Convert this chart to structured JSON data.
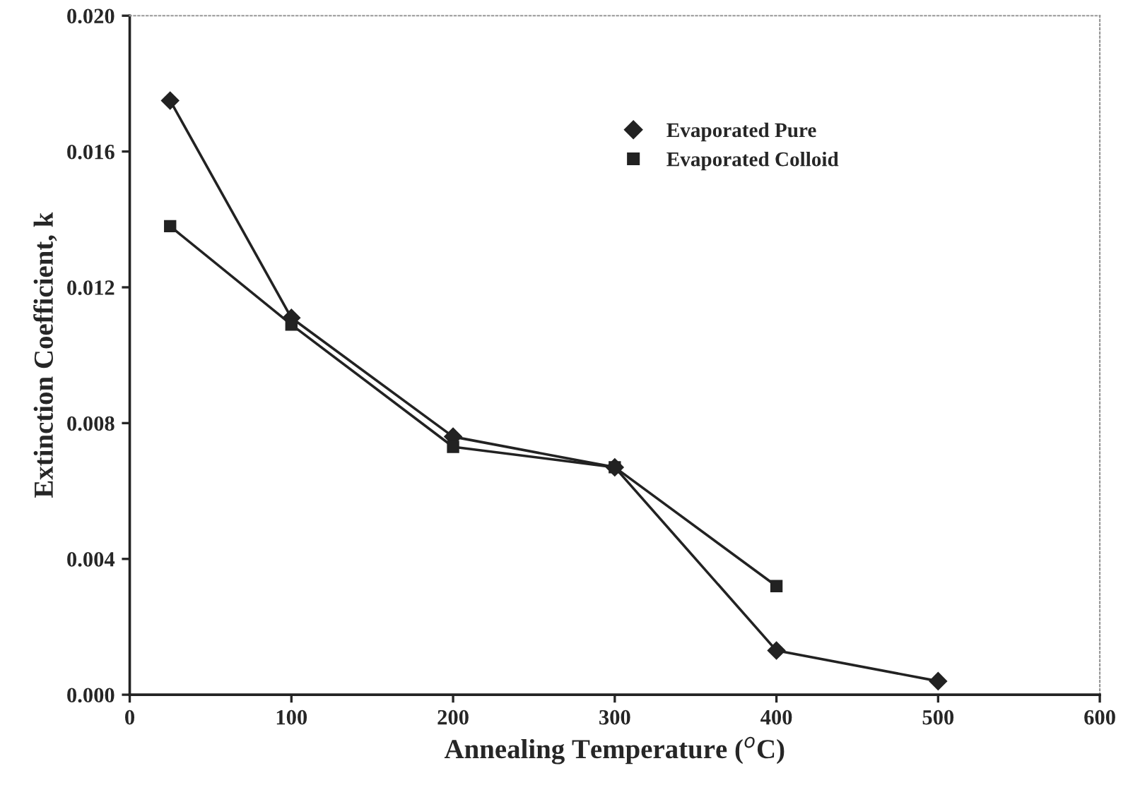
{
  "chart_data": {
    "type": "line",
    "xlabel": "Annealing Temperature ($^{o}$C)",
    "ylabel": "Extinction Coefficient, k",
    "xlim": [
      0,
      600
    ],
    "xticks": [
      0,
      100,
      200,
      300,
      400,
      500,
      600
    ],
    "ylim": [
      0,
      0.02
    ],
    "yticks": [
      {
        "value": 0,
        "label": "0.000"
      },
      {
        "value": 0.004,
        "label": "0.004"
      },
      {
        "value": 0.008,
        "label": "0.008"
      },
      {
        "value": 0.012,
        "label": "0.012"
      },
      {
        "value": 0.016,
        "label": "0.016"
      },
      {
        "value": 0.02,
        "label": "0.020"
      }
    ],
    "grid": false,
    "legend": "top right",
    "series": [
      {
        "name": "Evaporated Pure",
        "color": "#222222",
        "marker": "diamond",
        "x": [
          25,
          100,
          200,
          300,
          400,
          500
        ],
        "values": [
          0.0175,
          0.0111,
          0.0076,
          0.0067,
          0.0013,
          0.0004
        ]
      },
      {
        "name": "Evaporated Colloid",
        "color": "#222222",
        "marker": "square",
        "x": [
          25,
          100,
          200,
          300,
          400
        ],
        "values": [
          0.0138,
          0.0109,
          0.0073,
          0.0067,
          0.0032
        ]
      }
    ]
  }
}
